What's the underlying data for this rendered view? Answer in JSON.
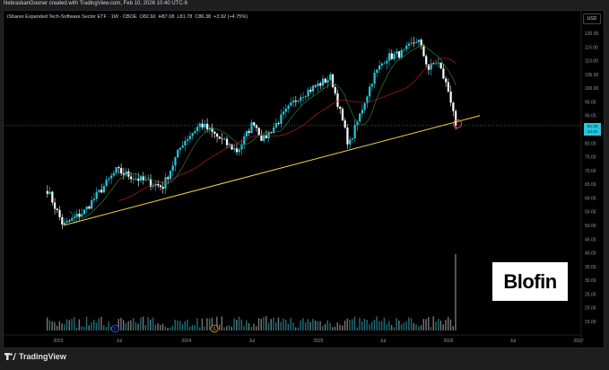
{
  "header": {
    "attribution": "NebraskanGooner created with TradingView.com, Feb 10, 2026 10:40 UTC-6"
  },
  "legend": {
    "symbol": "iShares Expanded Tech-Software Sector ETF · 1W · CBOE",
    "open": "O82.60",
    "high": "H87.08",
    "low": "L81.78",
    "close": "C86.38",
    "change": "+3.92 (+4.75%)"
  },
  "price_axis": {
    "currency": "USD",
    "ticks": [
      "120.00",
      "115.00",
      "110.00",
      "105.00",
      "100.00",
      "95.00",
      "90.00",
      "80.00",
      "75.00",
      "70.00",
      "65.00",
      "60.00",
      "55.00",
      "50.00",
      "45.00",
      "40.00",
      "35.00",
      "30.00",
      "25.00",
      "20.00",
      "15.00"
    ],
    "last_price": "86.38",
    "countdown": "3d 5h"
  },
  "time_axis": {
    "ticks": [
      "2023",
      "Jul",
      "2024",
      "Jul",
      "2025",
      "Jul",
      "2026",
      "Jul",
      "2027"
    ]
  },
  "events": [
    {
      "icon": "dividend-icon",
      "label": "D",
      "color": "#2962ff"
    },
    {
      "icon": "split-icon",
      "label": "S",
      "color": "#f7a600"
    }
  ],
  "watermark": {
    "text": "Blofin"
  },
  "footer": {
    "brand": "TradingView"
  },
  "colors": {
    "up": "#26c6da",
    "down": "#ffffff",
    "trendline": "#f5d142",
    "ma_fast": "#2e7d32",
    "ma_slow": "#b71c1c",
    "circle": "#ef5350"
  },
  "chart_data": {
    "type": "candlestick",
    "interval": "1W",
    "ylim": [
      15,
      120
    ],
    "price_path": [
      [
        "2022-12-01",
        63
      ],
      [
        "2023-01-15",
        50
      ],
      [
        "2023-03-15",
        55
      ],
      [
        "2023-06-15",
        70
      ],
      [
        "2023-08-15",
        67
      ],
      [
        "2023-10-25",
        64
      ],
      [
        "2023-12-20",
        80
      ],
      [
        "2024-02-10",
        87
      ],
      [
        "2024-04-20",
        80
      ],
      [
        "2024-05-25",
        77
      ],
      [
        "2024-07-10",
        88
      ],
      [
        "2024-08-05",
        81
      ],
      [
        "2024-11-15",
        97
      ],
      [
        "2025-02-15",
        104
      ],
      [
        "2025-04-07",
        79
      ],
      [
        "2025-06-15",
        104
      ],
      [
        "2025-07-20",
        111
      ],
      [
        "2025-09-10",
        113
      ],
      [
        "2025-10-20",
        118
      ],
      [
        "2025-11-20",
        107
      ],
      [
        "2025-12-15",
        110
      ],
      [
        "2026-01-15",
        99
      ],
      [
        "2026-02-10",
        86.38
      ]
    ],
    "trendline": [
      [
        "2023-01-15",
        50
      ],
      [
        "2026-04-15",
        90
      ]
    ],
    "volume_spike": [
      "2026-02-10"
    ]
  }
}
